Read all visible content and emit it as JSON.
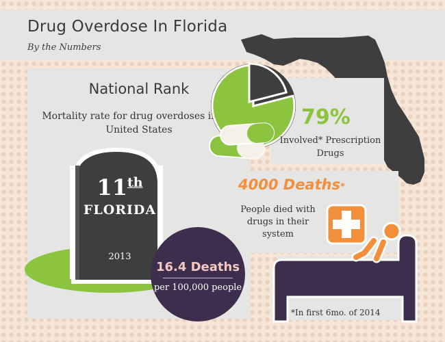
{
  "header": {
    "title": "Drug Overdose In Florida",
    "subtitle": "By the Numbers"
  },
  "national_rank": {
    "title": "National Rank",
    "description": "Mortality rate for drug overdoses in the United States",
    "rank_number": "11",
    "rank_suffix": "th",
    "state": "FLORIDA",
    "year": "2013"
  },
  "rate": {
    "deaths": "16.4 Deaths",
    "per": "per 100,000 people"
  },
  "prescription": {
    "percent": "79%",
    "percent_value": 79,
    "label": "Involved* Prescription Drugs"
  },
  "deaths_2014": {
    "count": "4000 Deaths",
    "asterisk": "*",
    "description": "People died with drugs in their system"
  },
  "footnote": "*In first 6mo. of 2014",
  "colors": {
    "green": "#8cc43f",
    "dark_gray": "#3e3e3e",
    "orange": "#f18f3b",
    "purple": "#3d2e4e",
    "pink": "#f3c9c1",
    "panel": "#e5e5e3"
  },
  "icons": [
    "pie-chart-icon",
    "pills-icon",
    "florida-map-icon",
    "tombstone-icon",
    "medical-cross-icon",
    "hospital-bed-icon"
  ]
}
